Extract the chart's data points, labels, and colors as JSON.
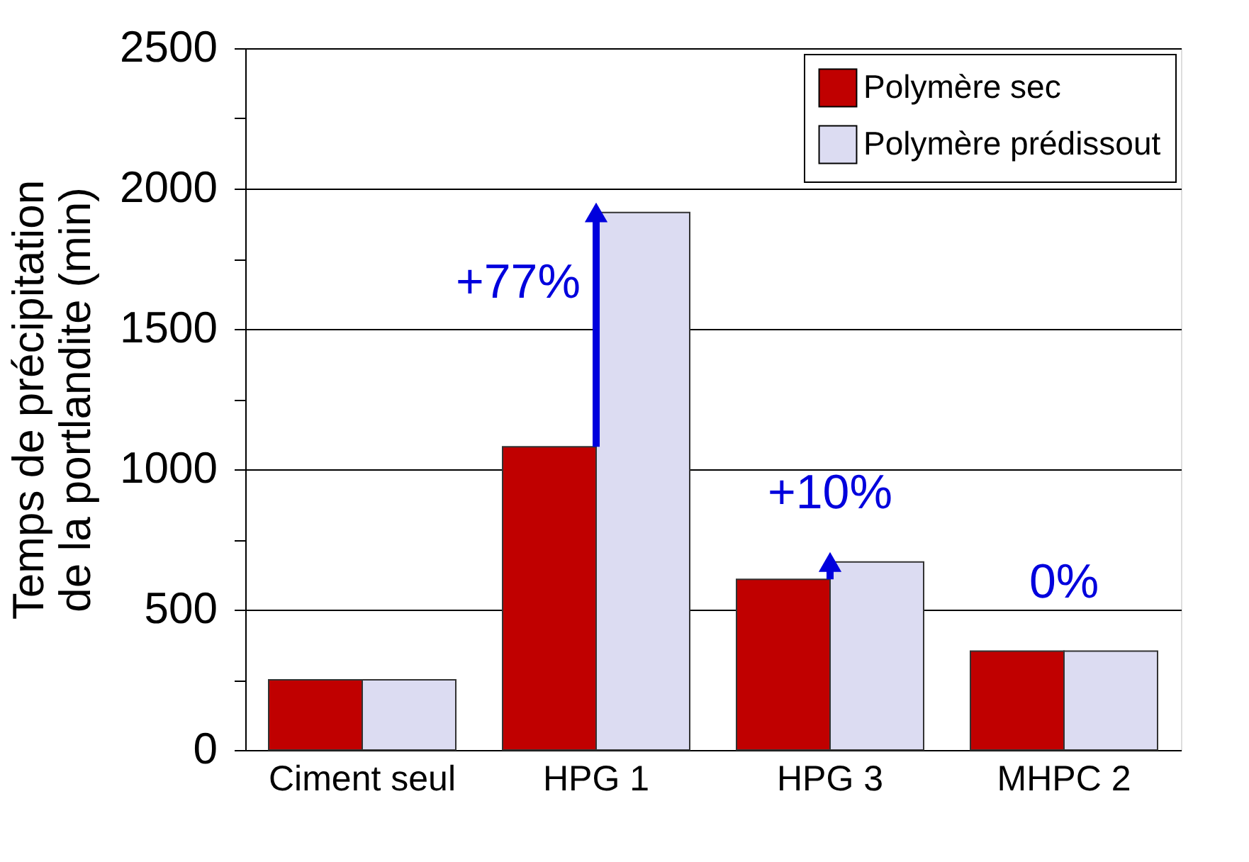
{
  "chart_data": {
    "type": "bar",
    "ylabel": "Temps de précipitation\nde la portlandite (min)",
    "categories": [
      "Ciment seul",
      "HPG 1",
      "HPG 3",
      "MHPC 2"
    ],
    "series": [
      {
        "name": "Polymère sec",
        "color": "#c00000",
        "values": [
          250,
          1080,
          608,
          352
        ]
      },
      {
        "name": "Polymère prédissout",
        "color": "#dcdcf2",
        "values": [
          250,
          1915,
          670,
          352
        ]
      }
    ],
    "ylim": [
      0,
      2500
    ],
    "yticks": [
      0,
      {
        "value": 250,
        "label": null
      },
      500,
      {
        "value": 750,
        "label": null
      },
      1000,
      {
        "value": 1250,
        "label": null
      },
      1500,
      {
        "value": 1750,
        "label": null
      },
      2000,
      {
        "value": 2250,
        "label": null
      },
      2500
    ],
    "grid": "y",
    "legend": "top right",
    "annotations": [
      {
        "text": "+77%",
        "x": "HPG 1",
        "y": 1915
      },
      {
        "text": "+10%",
        "x": "HPG 3",
        "y": 670
      },
      {
        "text": "0%",
        "x": "MHPC 2",
        "y": 352
      }
    ]
  }
}
